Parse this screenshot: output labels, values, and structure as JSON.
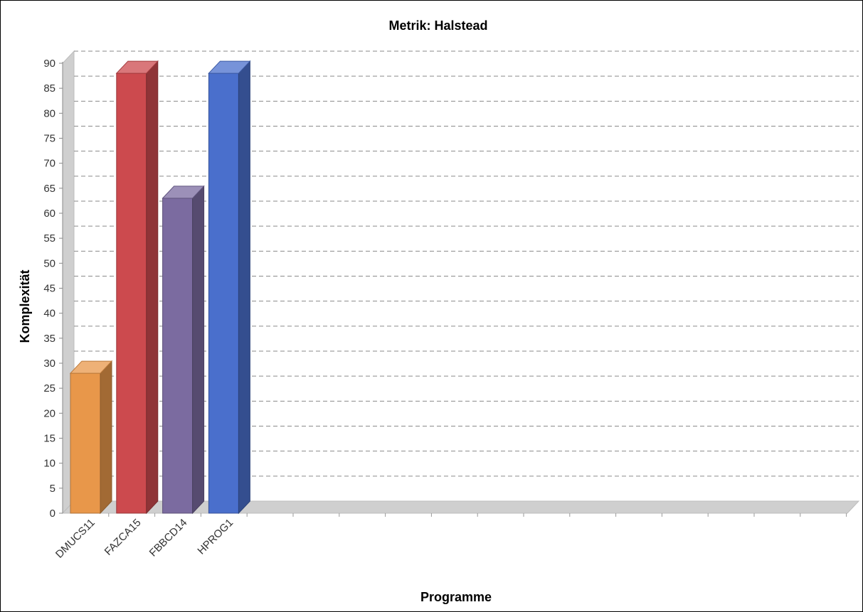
{
  "chart_data": {
    "type": "bar",
    "style": "3d",
    "title": "Metrik: Halstead",
    "xlabel": "Programme",
    "ylabel": "Komplexität",
    "ylim": [
      0,
      90
    ],
    "y_tick_step": 5,
    "grid": true,
    "categories": [
      "DMUCS11",
      "FAZCA15",
      "FBBCD14",
      "HPROG1"
    ],
    "values": [
      28,
      88,
      63,
      88
    ],
    "colors": [
      "#E8974A",
      "#CC4A4E",
      "#7B6BA0",
      "#4A6FCC"
    ]
  }
}
